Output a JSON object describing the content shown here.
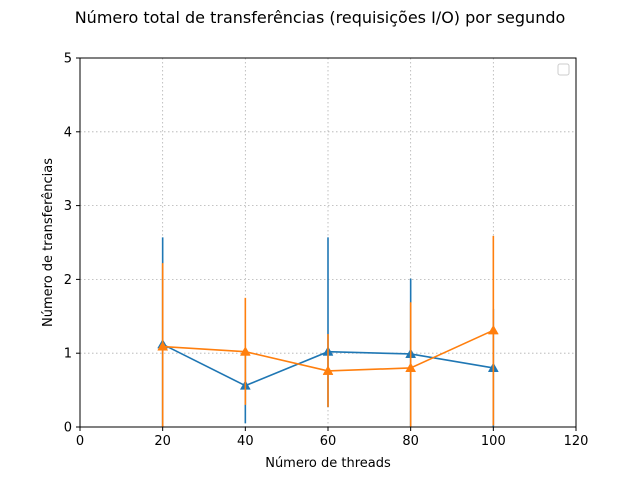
{
  "chart_data": {
    "type": "line",
    "title": "Número total de transferências (requisições I/O) por segundo",
    "xlabel": "Número de threads",
    "ylabel": "Número de transferências",
    "xlim": [
      0,
      120
    ],
    "ylim": [
      0,
      5
    ],
    "xticks": [
      0,
      20,
      40,
      60,
      80,
      100,
      120
    ],
    "yticks": [
      0,
      1,
      2,
      3,
      4,
      5
    ],
    "grid": true,
    "legend": "upper-right (empty)",
    "x": [
      20,
      40,
      60,
      80,
      100
    ],
    "series": [
      {
        "color": "#1f77b4",
        "marker": "triangle",
        "values": [
          1.12,
          0.56,
          1.02,
          0.99,
          0.8
        ],
        "err_low": [
          0.0,
          0.05,
          0.27,
          0.0,
          0.0
        ],
        "err_high": [
          2.57,
          1.07,
          2.57,
          2.01,
          1.6
        ]
      },
      {
        "color": "#ff7f0e",
        "marker": "triangle",
        "values": [
          1.09,
          1.02,
          0.76,
          0.8,
          1.31
        ],
        "err_low": [
          0.0,
          0.3,
          0.27,
          0.0,
          0.02
        ],
        "err_high": [
          2.22,
          1.75,
          1.26,
          1.69,
          2.59
        ]
      }
    ]
  }
}
